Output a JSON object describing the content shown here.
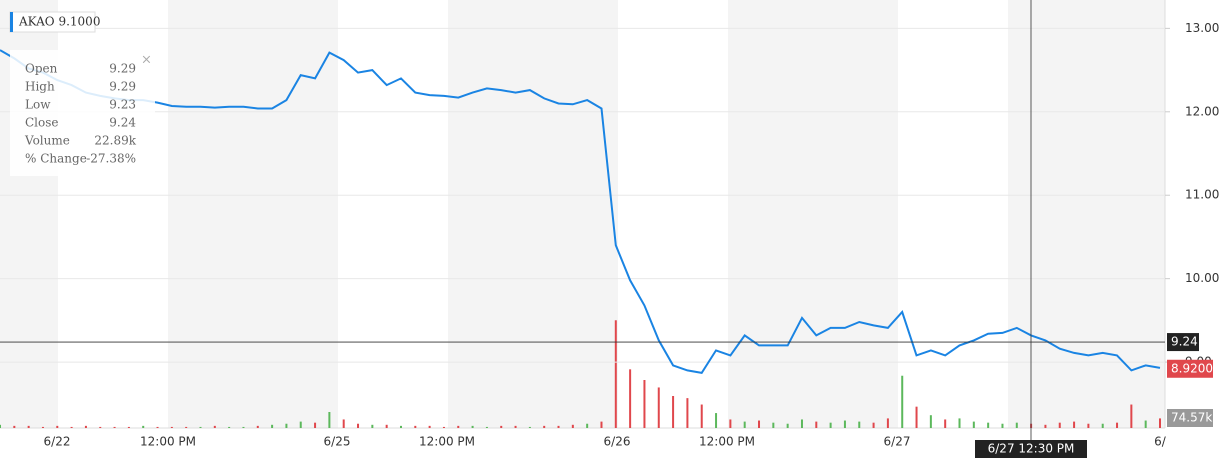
{
  "chart_data": {
    "type": "line",
    "ticker_label": "AKAO 9.1000",
    "color": "#1a84e3",
    "values": [
      12.74,
      12.64,
      12.52,
      12.47,
      12.38,
      12.32,
      12.23,
      12.19,
      12.16,
      12.14,
      12.14,
      12.11,
      12.07,
      12.06,
      12.06,
      12.05,
      12.06,
      12.06,
      12.04,
      12.04,
      12.14,
      12.44,
      12.4,
      12.71,
      12.62,
      12.47,
      12.5,
      12.32,
      12.4,
      12.23,
      12.2,
      12.19,
      12.17,
      12.23,
      12.28,
      12.26,
      12.23,
      12.26,
      12.16,
      12.1,
      12.09,
      12.14,
      12.04,
      10.4,
      9.98,
      9.68,
      9.26,
      8.96,
      8.9,
      8.87,
      9.14,
      9.08,
      9.32,
      9.2,
      9.2,
      9.2,
      9.53,
      9.32,
      9.41,
      9.41,
      9.48,
      9.44,
      9.41,
      9.6,
      9.08,
      9.14,
      9.08,
      9.2,
      9.26,
      9.34,
      9.35,
      9.41,
      9.32,
      9.26,
      9.16,
      9.11,
      9.08,
      9.11,
      9.08,
      8.9,
      8.96,
      8.93
    ],
    "volume": [
      3,
      2,
      2,
      1,
      2,
      1,
      2,
      1,
      1,
      1,
      2,
      1,
      1,
      1,
      1,
      2,
      1,
      1,
      2,
      3,
      4,
      6,
      5,
      15,
      8,
      4,
      3,
      3,
      2,
      2,
      2,
      1,
      2,
      2,
      1,
      2,
      2,
      1,
      2,
      2,
      3,
      4,
      6,
      101,
      55,
      45,
      38,
      30,
      28,
      22,
      14,
      8,
      6,
      7,
      5,
      4,
      8,
      6,
      5,
      7,
      6,
      5,
      9,
      49,
      20,
      12,
      8,
      9,
      6,
      5,
      4,
      5,
      4,
      3,
      5,
      6,
      4,
      4,
      5,
      22,
      7,
      9
    ],
    "volume_lim": [
      0,
      120
    ],
    "up_color": "#5cb85c",
    "down_color": "#e0474c",
    "ylim": [
      8.21,
      13.34
    ],
    "yticks": [
      {
        "value": 9,
        "label": "9.00"
      },
      {
        "value": 10,
        "label": "10.00"
      },
      {
        "value": 11,
        "label": "11.00"
      },
      {
        "value": 12,
        "label": "12.00"
      },
      {
        "value": 13,
        "label": "13.00"
      }
    ],
    "grid": true,
    "x_labels": [
      "6/22",
      "12:00 PM",
      "6/25",
      "12:00 PM",
      "6/26",
      "12:00 PM",
      "6/27",
      "6/"
    ],
    "crosshair": {
      "value": 9.24,
      "time_label": "6/27 12:30 PM"
    },
    "last_price": {
      "value": 8.92,
      "label": "8.9200"
    },
    "volume_label": "74.57k",
    "tooltip": [
      [
        "Open",
        "9.29"
      ],
      [
        "High",
        "9.29"
      ],
      [
        "Low",
        "9.23"
      ],
      [
        "Close",
        "9.24"
      ],
      [
        "Volume",
        "22.89k"
      ],
      [
        "% Change",
        "-27.38%"
      ]
    ]
  }
}
